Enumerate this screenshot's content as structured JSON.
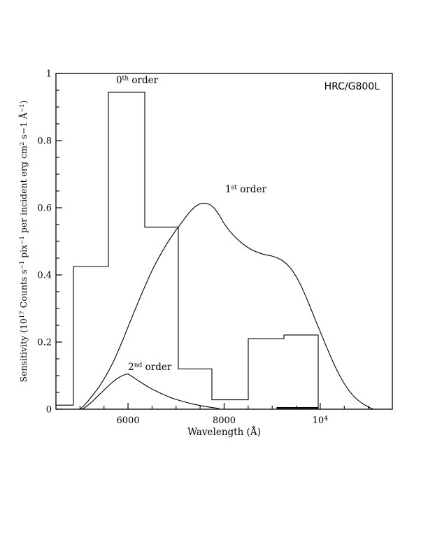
{
  "figure": {
    "instrument_label": "HRC/G800L",
    "background_color": "#ffffff",
    "line_color": "#000000"
  },
  "chart_data": {
    "type": "line",
    "title": "",
    "xlabel": "Wavelength (Å)",
    "ylabel_parts": [
      {
        "t": "Sensitivity (10"
      },
      {
        "s": "17"
      },
      {
        "t": " Counts s"
      },
      {
        "s": "−1"
      },
      {
        "t": " pix"
      },
      {
        "s": "−1"
      },
      {
        "t": " per incident erg cm"
      },
      {
        "s": "2"
      },
      {
        "t": " s−1 Å"
      },
      {
        "s": "−1"
      },
      {
        "t": ")"
      }
    ],
    "xlim": [
      4500,
      11500
    ],
    "ylim": [
      0,
      1
    ],
    "grid": false,
    "legend": "none (inline curve labels)",
    "x_minor_step": 500,
    "y_minor_step": 0.05,
    "x_major_ticks": [
      {
        "value": 6000,
        "label_parts": [
          {
            "t": "6000"
          }
        ]
      },
      {
        "value": 8000,
        "label_parts": [
          {
            "t": "8000"
          }
        ]
      },
      {
        "value": 10000,
        "label_parts": [
          {
            "t": "10"
          },
          {
            "s": "4"
          }
        ]
      }
    ],
    "y_major_ticks": [
      {
        "value": 0,
        "label": "0"
      },
      {
        "value": 0.2,
        "label": "0.2"
      },
      {
        "value": 0.4,
        "label": "0.4"
      },
      {
        "value": 0.6,
        "label": "0.6"
      },
      {
        "value": 0.8,
        "label": "0.8"
      },
      {
        "value": 1,
        "label": "1"
      }
    ],
    "series": [
      {
        "key": "zeroth-order-curve",
        "name": "0th order",
        "style": "step",
        "bin_edges": [
          4500,
          4864,
          5591,
          6348,
          7046,
          7745,
          8502,
          9244,
          9957
        ],
        "values": [
          0.012,
          0.425,
          0.944,
          0.542,
          0.12,
          0.028,
          0.21,
          0.221
        ],
        "width": 1.1
      },
      {
        "key": "first-order-curve",
        "name": "1st order",
        "style": "line",
        "x": [
          5000,
          5100,
          5200,
          5300,
          5400,
          5500,
          5600,
          5700,
          5800,
          5900,
          6000,
          6100,
          6200,
          6300,
          6400,
          6500,
          6600,
          6700,
          6800,
          6900,
          7000,
          7100,
          7200,
          7300,
          7400,
          7500,
          7600,
          7700,
          7800,
          7900,
          8000,
          8100,
          8200,
          8300,
          8400,
          8500,
          8600,
          8700,
          8800,
          8900,
          9000,
          9100,
          9200,
          9300,
          9400,
          9500,
          9600,
          9700,
          9800,
          9900,
          10000,
          10100,
          10200,
          10300,
          10400,
          10500,
          10600,
          10700,
          10800,
          10900,
          11000,
          11100
        ],
        "y": [
          0,
          0.013,
          0.03,
          0.048,
          0.067,
          0.09,
          0.115,
          0.143,
          0.175,
          0.209,
          0.245,
          0.28,
          0.315,
          0.349,
          0.382,
          0.413,
          0.441,
          0.467,
          0.491,
          0.513,
          0.534,
          0.553,
          0.572,
          0.59,
          0.604,
          0.612,
          0.614,
          0.61,
          0.598,
          0.578,
          0.553,
          0.533,
          0.517,
          0.503,
          0.491,
          0.481,
          0.473,
          0.467,
          0.462,
          0.459,
          0.456,
          0.451,
          0.444,
          0.433,
          0.417,
          0.395,
          0.368,
          0.336,
          0.301,
          0.265,
          0.231,
          0.196,
          0.162,
          0.13,
          0.101,
          0.076,
          0.055,
          0.038,
          0.025,
          0.015,
          0.007,
          0
        ],
        "width": 1.1
      },
      {
        "key": "second-order-curve",
        "name": "2nd order",
        "style": "line",
        "x": [
          5050,
          5150,
          5250,
          5350,
          5450,
          5550,
          5650,
          5750,
          5850,
          5950,
          6000,
          6100,
          6200,
          6300,
          6400,
          6500,
          6600,
          6700,
          6800,
          6900,
          7000,
          7100,
          7200,
          7300,
          7400,
          7500,
          7600,
          7700,
          7800,
          7900
        ],
        "y": [
          0,
          0.01,
          0.022,
          0.036,
          0.05,
          0.064,
          0.077,
          0.089,
          0.098,
          0.104,
          0.105,
          0.096,
          0.086,
          0.077,
          0.068,
          0.06,
          0.053,
          0.046,
          0.04,
          0.034,
          0.029,
          0.025,
          0.021,
          0.017,
          0.014,
          0.011,
          0.008,
          0.006,
          0.004,
          0.002
        ],
        "width": 1.1
      },
      {
        "key": "zeroth-order-zero-segment",
        "name": "0th order near-zero segment",
        "style": "line",
        "x": [
          9090,
          9957
        ],
        "y": [
          0.004,
          0.004
        ],
        "width": 2.2
      }
    ],
    "annotations": [
      {
        "key": "zeroth-order-label",
        "x": 5751,
        "v": 0.971,
        "anchor": "start",
        "font": "serif",
        "size": 13.5,
        "parts": [
          {
            "t": "0"
          },
          {
            "s": "th"
          },
          {
            "t": " order"
          }
        ]
      },
      {
        "key": "first-order-label",
        "x": 8021,
        "v": 0.646,
        "anchor": "start",
        "font": "serif",
        "size": 13.5,
        "parts": [
          {
            "t": "1"
          },
          {
            "s": "st"
          },
          {
            "t": " order"
          }
        ]
      },
      {
        "key": "second-order-label",
        "x": 5999,
        "v": 0.117,
        "anchor": "start",
        "font": "serif",
        "size": 13.5,
        "parts": [
          {
            "t": "2"
          },
          {
            "s": "nd"
          },
          {
            "t": " order"
          }
        ]
      },
      {
        "key": "instrument-label",
        "x": 11238,
        "v": 0.952,
        "anchor": "end",
        "font": "sans",
        "size": 14,
        "parts": [
          {
            "t": "HRC/G800L"
          }
        ]
      }
    ]
  }
}
